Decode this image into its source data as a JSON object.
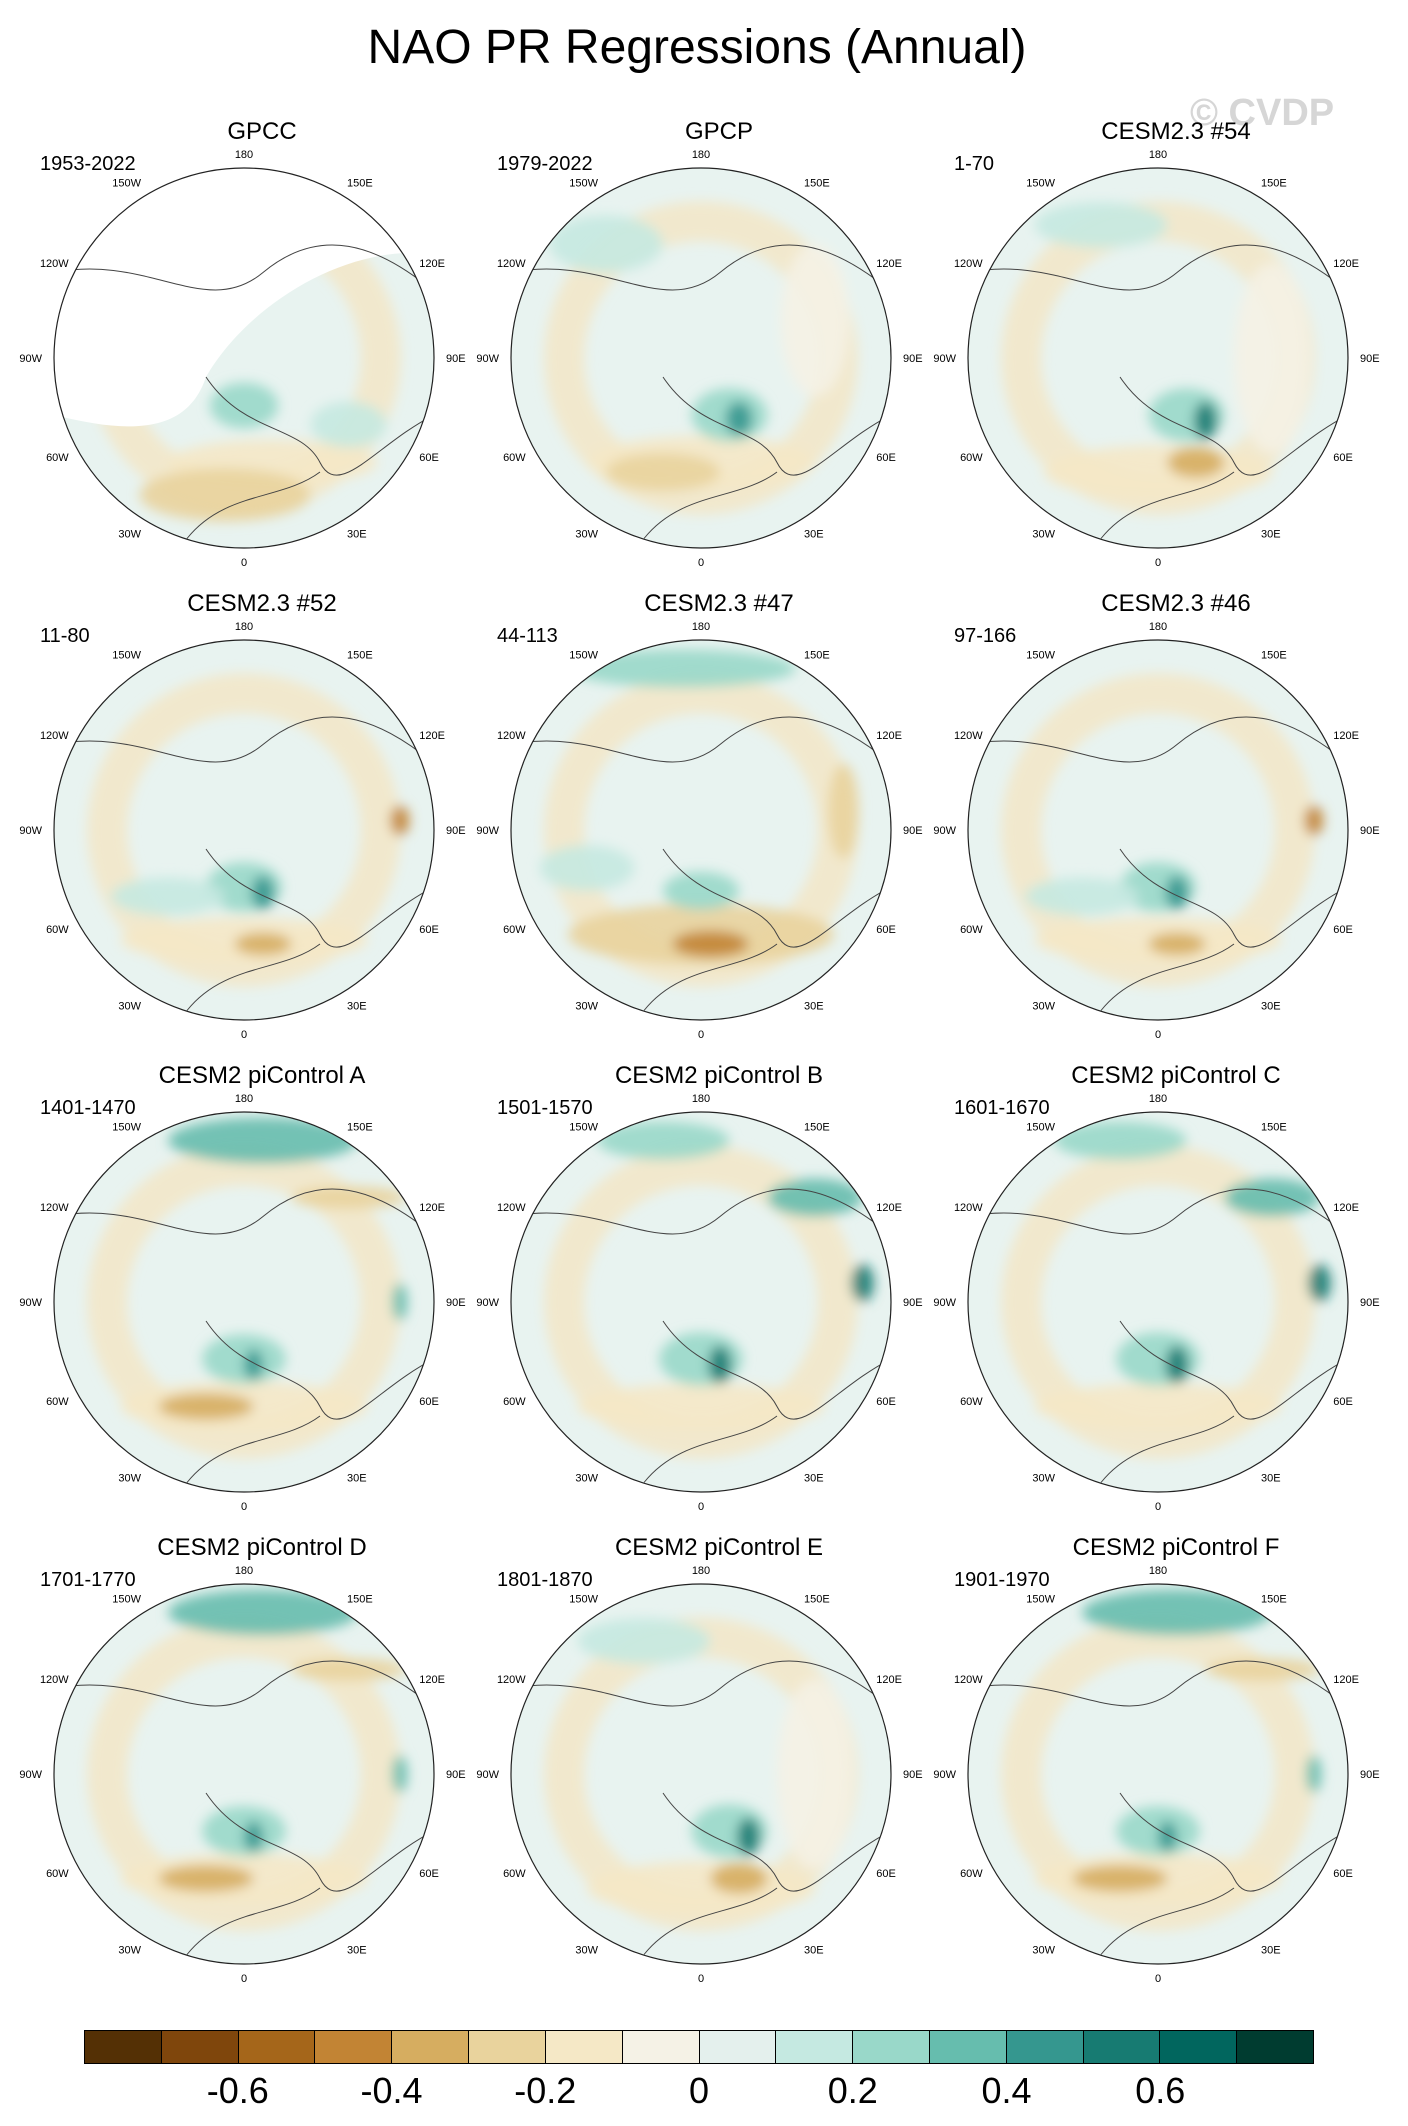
{
  "title": "NAO PR Regressions (Annual)",
  "watermark": "© CVDP",
  "longitude_labels": {
    "top": "180",
    "bottom": "0",
    "left_mid": "90W",
    "right_mid": "90E",
    "upper_left": "120W",
    "upper_right": "120E",
    "top_left": "150W",
    "top_right": "150E",
    "lower_left": "60W",
    "lower_right": "60E",
    "bottom_left": "30W",
    "bottom_right": "30E"
  },
  "panels": [
    {
      "title": "GPCC",
      "years": "1953-2022",
      "masked": true,
      "pattern": "obs"
    },
    {
      "title": "GPCP",
      "years": "1979-2022",
      "masked": false,
      "pattern": "obs2"
    },
    {
      "title": "CESM2.3 #54",
      "years": "1-70",
      "masked": false,
      "pattern": "a"
    },
    {
      "title": "CESM2.3 #52",
      "years": "11-80",
      "masked": false,
      "pattern": "b"
    },
    {
      "title": "CESM2.3 #47",
      "years": "44-113",
      "masked": false,
      "pattern": "c"
    },
    {
      "title": "CESM2.3 #46",
      "years": "97-166",
      "masked": false,
      "pattern": "b"
    },
    {
      "title": "CESM2 piControl A",
      "years": "1401-1470",
      "masked": false,
      "pattern": "d"
    },
    {
      "title": "CESM2 piControl B",
      "years": "1501-1570",
      "masked": false,
      "pattern": "e"
    },
    {
      "title": "CESM2 piControl C",
      "years": "1601-1670",
      "masked": false,
      "pattern": "e"
    },
    {
      "title": "CESM2 piControl D",
      "years": "1701-1770",
      "masked": false,
      "pattern": "d"
    },
    {
      "title": "CESM2 piControl E",
      "years": "1801-1870",
      "masked": false,
      "pattern": "a"
    },
    {
      "title": "CESM2 piControl F",
      "years": "1901-1970",
      "masked": false,
      "pattern": "d"
    }
  ],
  "colorbar": {
    "colors": [
      "#543005",
      "#7f460c",
      "#a5661a",
      "#c28434",
      "#d6ad60",
      "#e9d39d",
      "#f5e8c6",
      "#f5f2e6",
      "#e4f0ed",
      "#c5e9e1",
      "#99d8c9",
      "#66bdae",
      "#35978f",
      "#177b72",
      "#01665e",
      "#003c30"
    ],
    "tick_labels": [
      "-0.6",
      "-0.4",
      "-0.2",
      "0",
      "0.2",
      "0.4",
      "0.6"
    ],
    "tick_values": [
      -0.6,
      -0.4,
      -0.2,
      0,
      0.2,
      0.4,
      0.6
    ]
  }
}
